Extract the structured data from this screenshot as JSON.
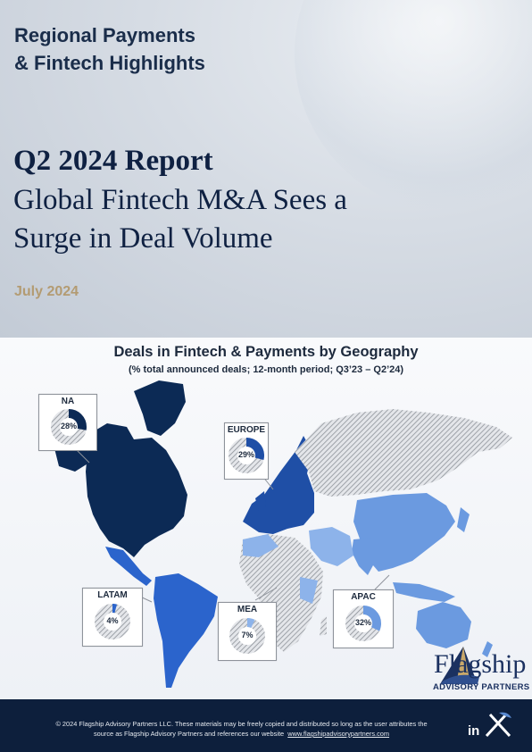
{
  "header": {
    "series_line1": "Regional Payments",
    "series_line2": "& Fintech Highlights",
    "report_title": "Q2 2024 Report",
    "headline_line1": "Global Fintech M&A Sees a",
    "headline_line2": "Surge in Deal Volume",
    "date": "July 2024"
  },
  "map": {
    "title": "Deals in Fintech & Payments by Geography",
    "subtitle": "(% total announced deals; 12-month period; Q3’23 – Q2’24)",
    "colors": {
      "na": "#0c2a55",
      "europe": "#1f4fa6",
      "apac": "#6b9ae0",
      "latam": "#2b64cc",
      "mea": "#8db3ea",
      "no_data": "#c8cbd0"
    }
  },
  "chart_data": {
    "type": "pie",
    "title": "Deals in Fintech & Payments by Geography",
    "subtitle": "(% total announced deals; 12-month period; Q3’23 – Q2’24)",
    "categories": [
      "NA",
      "EUROPE",
      "LATAM",
      "MEA",
      "APAC"
    ],
    "values": [
      28,
      29,
      4,
      7,
      32
    ],
    "labels": [
      "28%",
      "29%",
      "4%",
      "7%",
      "32%"
    ],
    "unit": "%"
  },
  "logo": {
    "name": "Flagship",
    "sub": "ADVISORY PARTNERS"
  },
  "footer": {
    "line1": "© 2024 Flagship Advisory Partners LLC. These materials may be freely copied and distributed so long as the user attributes the",
    "line2": "source as Flagship Advisory Partners and references our website",
    "link": "www.flagshipadvisorypartners.com",
    "in_icon": "in"
  }
}
